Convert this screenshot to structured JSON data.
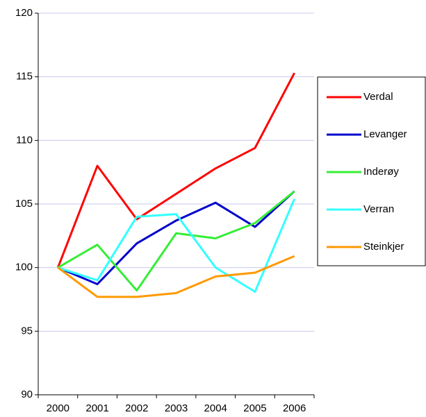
{
  "chart_data": {
    "type": "line",
    "categories": [
      "2000",
      "2001",
      "2002",
      "2003",
      "2004",
      "2005",
      "2006"
    ],
    "series": [
      {
        "name": "Verdal",
        "color": "#ff0000",
        "values": [
          100,
          108.0,
          103.8,
          105.8,
          107.8,
          109.4,
          115.3
        ]
      },
      {
        "name": "Levanger",
        "color": "#0000cc",
        "values": [
          100,
          98.7,
          101.9,
          103.7,
          105.1,
          103.2,
          106.0
        ]
      },
      {
        "name": "Inderøy",
        "color": "#33ee33",
        "values": [
          100,
          101.8,
          98.2,
          102.7,
          102.3,
          103.5,
          106.0
        ]
      },
      {
        "name": "Verran",
        "color": "#33ffff",
        "values": [
          100,
          99.0,
          104.0,
          104.2,
          100.0,
          98.1,
          105.4
        ]
      },
      {
        "name": "Steinkjer",
        "color": "#ff9900",
        "values": [
          100,
          97.7,
          97.7,
          98.0,
          99.3,
          99.6,
          100.9
        ]
      }
    ],
    "ylim": [
      90,
      120
    ],
    "yticks": [
      90,
      95,
      100,
      105,
      110,
      115,
      120
    ],
    "grid": true,
    "legend": "right"
  }
}
